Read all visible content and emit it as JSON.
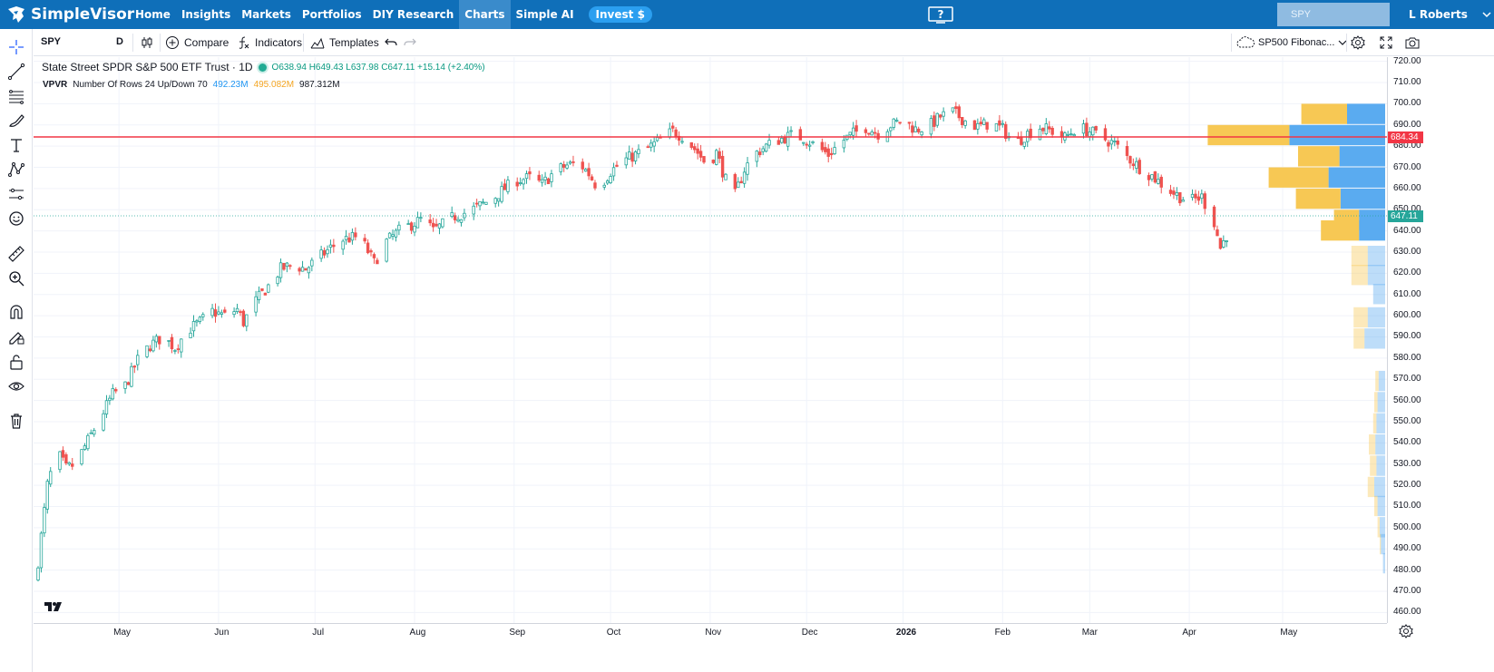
{
  "nav": {
    "brand": "SimpleVisor",
    "links": [
      {
        "label": "Home",
        "active": false
      },
      {
        "label": "Insights",
        "active": false
      },
      {
        "label": "Markets",
        "active": false
      },
      {
        "label": "Portfolios",
        "active": false
      },
      {
        "label": "DIY Research",
        "active": false
      },
      {
        "label": "Charts",
        "active": true
      },
      {
        "label": "Simple AI",
        "active": false
      }
    ],
    "invest_label": "Invest $",
    "search_value": "SPY",
    "user_name": "L Roberts"
  },
  "toolbar": {
    "symbol": "SPY",
    "interval": "D",
    "compare_label": "Compare",
    "indicators_label": "Indicators",
    "templates_label": "Templates",
    "layout_name": "SP500 Fibonac..."
  },
  "left_tools": [
    "crosshair-icon",
    "trend-line-icon",
    "fib-retracement-icon",
    "brush-icon",
    "text-icon",
    "pattern-icon",
    "forecast-icon",
    "emoji-icon",
    "ruler-icon",
    "zoom-in-icon",
    "magnet-icon",
    "lock-drawing-icon",
    "lock-icon",
    "eye-icon",
    "trash-icon"
  ],
  "legend": {
    "title": "State Street SPDR S&P 500 ETF Trust · 1D",
    "ohlc": "O638.94 H649.43 L637.98 C647.11 +15.14 (+2.40%)",
    "vpvr_name": "VPVR",
    "vpvr_params": "Number Of Rows 24 Up/Down 70",
    "vpvr_up": "492.23M",
    "vpvr_down": "495.082M",
    "vpvr_total": "987.312M"
  },
  "price_axis": {
    "ticks": [
      720,
      710,
      700,
      690,
      680,
      670,
      660,
      650,
      640,
      630,
      620,
      610,
      600,
      590,
      580,
      570,
      560,
      550,
      540,
      530,
      520,
      510,
      500,
      490,
      480,
      470,
      460
    ],
    "tick_labels": [
      "720.00",
      "710.00",
      "700.00",
      "690.00",
      "680.00",
      "670.00",
      "660.00",
      "650.00",
      "640.00",
      "630.00",
      "620.00",
      "610.00",
      "600.00",
      "590.00",
      "580.00",
      "570.00",
      "560.00",
      "550.00",
      "540.00",
      "530.00",
      "520.00",
      "510.00",
      "500.00",
      "490.00",
      "480.00",
      "470.00",
      "460.00"
    ],
    "horizontal_line_label": "684.34",
    "last_price_label": "647.11"
  },
  "time_axis": {
    "labels": [
      "May",
      "Jun",
      "Jul",
      "Aug",
      "Sep",
      "Oct",
      "Nov",
      "Dec",
      "2026",
      "Feb",
      "Mar",
      "Apr",
      "May"
    ],
    "bold": "2026"
  },
  "colors": {
    "nav_bg": "#0f6fb9",
    "up": "#26a69a",
    "down": "#ef5350",
    "hline": "#f23645",
    "vp_up": "#5aabf0",
    "vp_down": "#f7c854"
  },
  "chart_data": {
    "type": "candlestick",
    "symbol": "SPY",
    "interval": "1D",
    "ylim": [
      455,
      722
    ],
    "horizontal_line": 684.34,
    "last_close": 647.11,
    "last_bar": {
      "open": 638.94,
      "high": 649.43,
      "low": 637.98,
      "close": 647.11,
      "change": 15.14,
      "change_pct": 2.4
    },
    "trend_path": [
      [
        0,
        484
      ],
      [
        3,
        520
      ],
      [
        6,
        536
      ],
      [
        9,
        528
      ],
      [
        12,
        530
      ],
      [
        16,
        541
      ],
      [
        20,
        552
      ],
      [
        24,
        563
      ],
      [
        28,
        567
      ],
      [
        32,
        579
      ],
      [
        36,
        586
      ],
      [
        40,
        590
      ],
      [
        44,
        585
      ],
      [
        48,
        593
      ],
      [
        52,
        597
      ],
      [
        56,
        602
      ],
      [
        60,
        600
      ],
      [
        64,
        603
      ],
      [
        66,
        597
      ],
      [
        70,
        607
      ],
      [
        74,
        614
      ],
      [
        78,
        622
      ],
      [
        82,
        624
      ],
      [
        86,
        622
      ],
      [
        90,
        627
      ],
      [
        94,
        632
      ],
      [
        98,
        636
      ],
      [
        102,
        637
      ],
      [
        105,
        633
      ],
      [
        108,
        625
      ],
      [
        112,
        635
      ],
      [
        116,
        640
      ],
      [
        120,
        643
      ],
      [
        124,
        646
      ],
      [
        127,
        640
      ],
      [
        130,
        643
      ],
      [
        134,
        647
      ],
      [
        138,
        649
      ],
      [
        142,
        652
      ],
      [
        146,
        655
      ],
      [
        150,
        660
      ],
      [
        154,
        664
      ],
      [
        158,
        665
      ],
      [
        162,
        662
      ],
      [
        166,
        668
      ],
      [
        170,
        671
      ],
      [
        174,
        672
      ],
      [
        177,
        667
      ],
      [
        180,
        660
      ],
      [
        184,
        668
      ],
      [
        188,
        673
      ],
      [
        192,
        676
      ],
      [
        196,
        679
      ],
      [
        200,
        683
      ],
      [
        204,
        687
      ],
      [
        208,
        684
      ],
      [
        212,
        677
      ],
      [
        215,
        671
      ],
      [
        218,
        677
      ],
      [
        221,
        664
      ],
      [
        224,
        657
      ],
      [
        227,
        669
      ],
      [
        230,
        676
      ],
      [
        234,
        680
      ],
      [
        238,
        683
      ],
      [
        242,
        685
      ],
      [
        246,
        684
      ],
      [
        250,
        680
      ],
      [
        254,
        676
      ],
      [
        258,
        682
      ],
      [
        262,
        686
      ],
      [
        266,
        689
      ],
      [
        270,
        686
      ],
      [
        274,
        690
      ],
      [
        278,
        692
      ],
      [
        282,
        688
      ],
      [
        286,
        689
      ],
      [
        290,
        694
      ],
      [
        294,
        696
      ],
      [
        298,
        692
      ],
      [
        302,
        689
      ],
      [
        306,
        691
      ],
      [
        310,
        688
      ],
      [
        314,
        681
      ],
      [
        318,
        686
      ],
      [
        322,
        689
      ],
      [
        326,
        687
      ],
      [
        330,
        684
      ],
      [
        334,
        689
      ],
      [
        338,
        687
      ],
      [
        342,
        684
      ],
      [
        346,
        681
      ],
      [
        350,
        675
      ],
      [
        354,
        670
      ],
      [
        358,
        666
      ],
      [
        362,
        661
      ],
      [
        366,
        657
      ],
      [
        370,
        654
      ],
      [
        374,
        656
      ],
      [
        378,
        644
      ],
      [
        380,
        632
      ],
      [
        382,
        638
      ],
      [
        384,
        647.11
      ]
    ],
    "series_count_days": 385,
    "volume_profile": {
      "row_height": 10,
      "rows": [
        {
          "price": 695,
          "up": 0.35,
          "down": 0.42
        },
        {
          "price": 685,
          "up": 0.88,
          "down": 0.75
        },
        {
          "price": 675,
          "up": 0.42,
          "down": 0.38
        },
        {
          "price": 665,
          "up": 0.52,
          "down": 0.55
        },
        {
          "price": 655,
          "up": 0.41,
          "down": 0.41
        },
        {
          "price": 645,
          "up": 0.24,
          "down": 0.23
        },
        {
          "price": 640,
          "up": 0.24,
          "down": 0.35
        },
        {
          "price": 628,
          "up": 0.16,
          "down": 0.15,
          "faded": true
        },
        {
          "price": 619,
          "up": 0.16,
          "down": 0.15,
          "faded": true
        },
        {
          "price": 610,
          "up": 0.11,
          "down": 0,
          "faded": true
        },
        {
          "price": 599,
          "up": 0.16,
          "down": 0.13,
          "faded": true
        },
        {
          "price": 589,
          "up": 0.19,
          "down": 0.1,
          "faded": true
        },
        {
          "price": 569,
          "up": 0.06,
          "down": 0.03,
          "faded": true
        },
        {
          "price": 559,
          "up": 0.07,
          "down": 0.03,
          "faded": true
        },
        {
          "price": 549,
          "up": 0.08,
          "down": 0.03,
          "faded": true
        },
        {
          "price": 539,
          "up": 0.09,
          "down": 0.06,
          "faded": true
        },
        {
          "price": 529,
          "up": 0.08,
          "down": 0.06,
          "faded": true
        },
        {
          "price": 519,
          "up": 0.1,
          "down": 0.06,
          "faded": true
        },
        {
          "price": 510,
          "up": 0.07,
          "down": 0.03,
          "faded": true
        },
        {
          "price": 500,
          "up": 0.05,
          "down": 0.02,
          "faded": true
        },
        {
          "price": 492,
          "up": 0.04,
          "down": 0.01,
          "faded": true
        },
        {
          "price": 483,
          "up": 0.02,
          "down": 0,
          "faded": true
        }
      ]
    }
  }
}
